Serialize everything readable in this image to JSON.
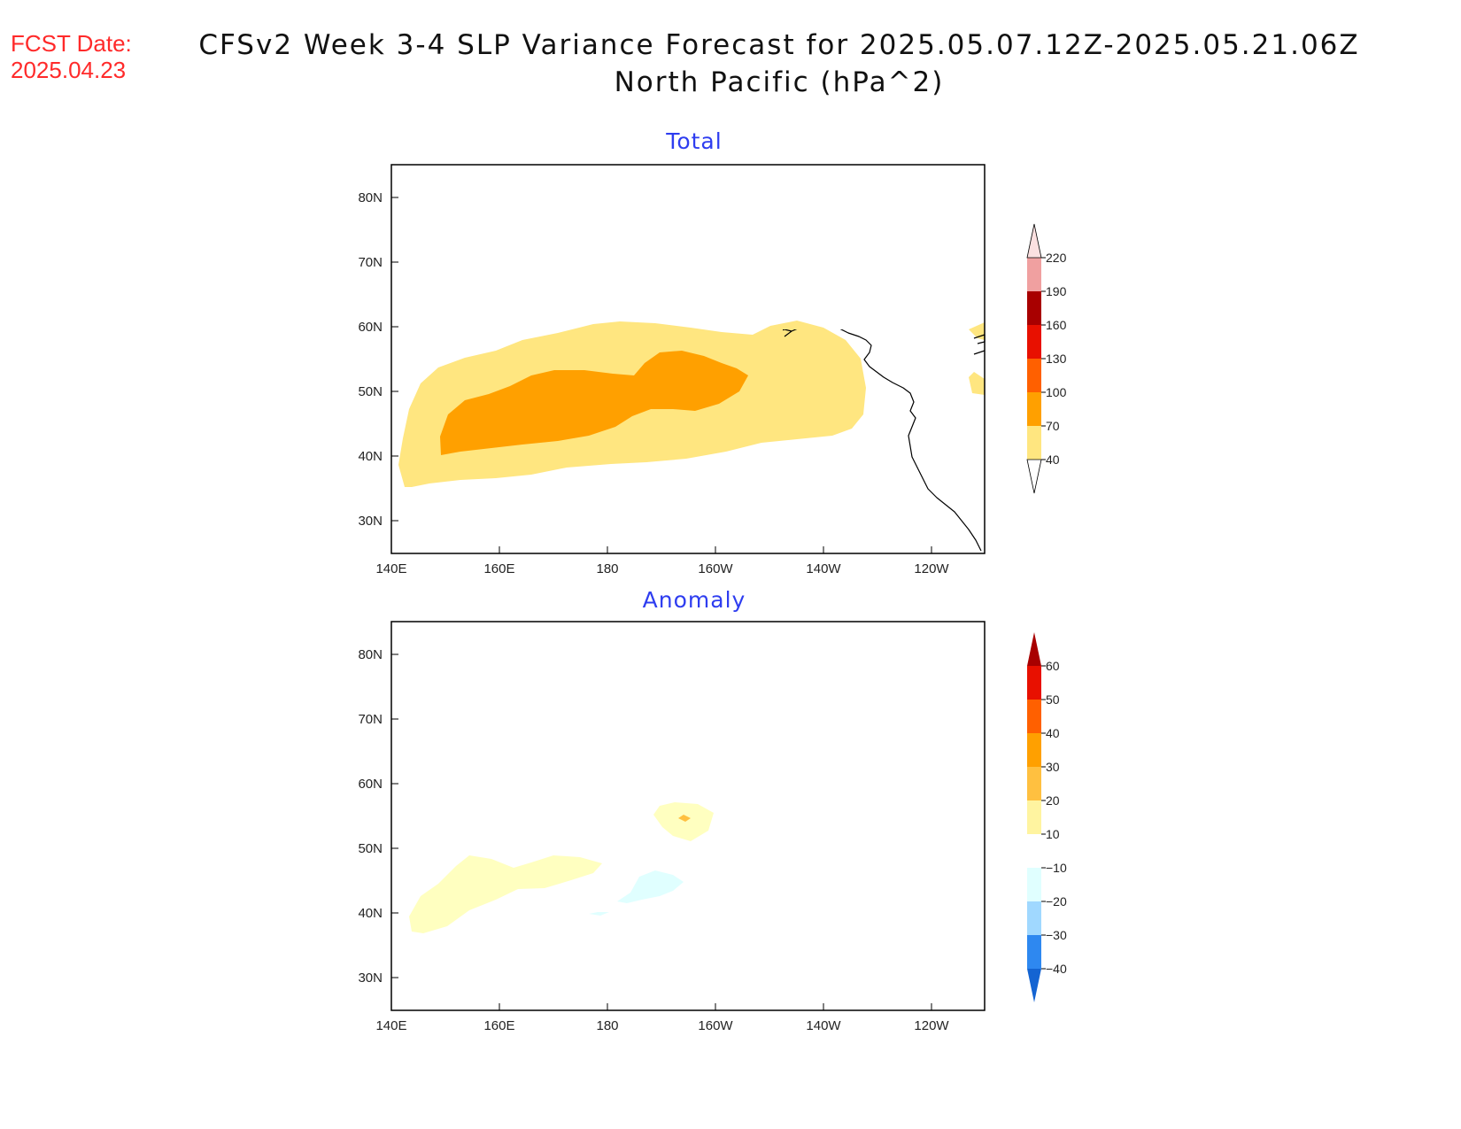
{
  "header": {
    "fcst_label": "FCST Date:",
    "fcst_date": "2025.04.23",
    "title_line1": "CFSv2 Week 3-4 SLP Variance Forecast for 2025.05.07.12Z-2025.05.21.06Z",
    "title_line2": "North Pacific (hPa^2)"
  },
  "axes": {
    "lat_ticks": [
      "80N",
      "70N",
      "60N",
      "50N",
      "40N",
      "30N"
    ],
    "lon_ticks": [
      "140E",
      "160E",
      "180",
      "160W",
      "140W",
      "120W"
    ]
  },
  "panels": [
    {
      "title": "Total",
      "colorbar": {
        "labels": [
          "40",
          "70",
          "100",
          "130",
          "160",
          "190",
          "220"
        ],
        "colors": [
          "#ffe680",
          "#ffa000",
          "#ff6000",
          "#e81000",
          "#a80000",
          "#f0a0a0",
          "#fbe0e0"
        ]
      }
    },
    {
      "title": "Anomaly",
      "colorbar": {
        "labels": [
          "60",
          "50",
          "40",
          "30",
          "20",
          "10",
          "−10",
          "−20",
          "−30",
          "−40"
        ],
        "colors": {
          "top_arrow": "#a80000",
          "bands": [
            "#e81000",
            "#ff6000",
            "#ffa000",
            "#ffc040",
            "#fff4a0",
            "#ffffff",
            "#e0ffff",
            "#a0d8ff",
            "#2e88f0"
          ],
          "bottom_arrow": "#1464d2"
        }
      }
    }
  ],
  "chart_data": {
    "type": "heatmap",
    "region": "North Pacific",
    "units": "hPa^2",
    "lon_range": [
      "140E",
      "110W"
    ],
    "lat_range": [
      "25N",
      "85N"
    ],
    "panels": [
      {
        "title": "Total",
        "contour_levels": [
          40,
          70,
          100,
          130,
          160,
          190,
          220
        ],
        "shaded_regions": [
          {
            "level": "40-70",
            "extent": "35N-60N, 143E-133W plus small area near 50-57N, 112W"
          },
          {
            "level": "70-100",
            "extent": "40N-56N, 150E-154W"
          }
        ]
      },
      {
        "title": "Anomaly",
        "contour_levels": [
          -40,
          -30,
          -20,
          -10,
          10,
          20,
          30,
          40,
          50,
          60
        ],
        "shaded_regions": [
          {
            "level": "10-20",
            "extent": "37N-49N, 143E-180"
          },
          {
            "level": "10-20",
            "extent": "51N-57N, 172W-160W"
          },
          {
            "level": "20-30",
            "extent": "small spot near 55N, 166W"
          },
          {
            "level": "-20 to -10",
            "extent": "42N-46N, 178W-168W"
          }
        ]
      }
    ]
  }
}
